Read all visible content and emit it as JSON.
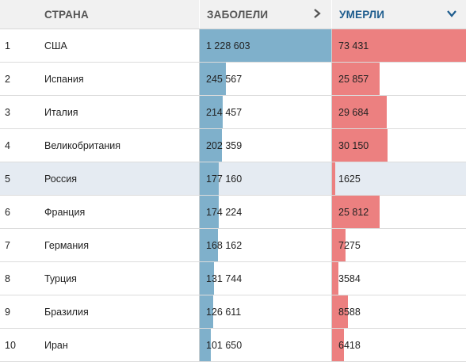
{
  "header": {
    "country": "СТРАНА",
    "cases": "ЗАБОЛЕЛИ",
    "deaths": "УМЕРЛИ",
    "cases_icon": "chevron-right-icon",
    "deaths_icon": "chevron-down-icon",
    "accent_color": "#1f5d8e"
  },
  "colors": {
    "cases_bar": "#7fb0cb",
    "deaths_bar": "#ec8080",
    "highlight_row": "#e5ebf2"
  },
  "rows": [
    {
      "rank": "1",
      "country": "США",
      "cases": "1 228 603",
      "deaths": "73 431",
      "cases_num": 1228603,
      "deaths_num": 73431
    },
    {
      "rank": "2",
      "country": "Испания",
      "cases": "245 567",
      "deaths": "25 857",
      "cases_num": 245567,
      "deaths_num": 25857
    },
    {
      "rank": "3",
      "country": "Италия",
      "cases": "214 457",
      "deaths": "29 684",
      "cases_num": 214457,
      "deaths_num": 29684
    },
    {
      "rank": "4",
      "country": "Великобритания",
      "cases": "202 359",
      "deaths": "30 150",
      "cases_num": 202359,
      "deaths_num": 30150
    },
    {
      "rank": "5",
      "country": "Россия",
      "cases": "177 160",
      "deaths": "1625",
      "cases_num": 177160,
      "deaths_num": 1625,
      "highlight": true
    },
    {
      "rank": "6",
      "country": "Франция",
      "cases": "174 224",
      "deaths": "25 812",
      "cases_num": 174224,
      "deaths_num": 25812
    },
    {
      "rank": "7",
      "country": "Германия",
      "cases": "168 162",
      "deaths": "7275",
      "cases_num": 168162,
      "deaths_num": 7275
    },
    {
      "rank": "8",
      "country": "Турция",
      "cases": "131 744",
      "deaths": "3584",
      "cases_num": 131744,
      "deaths_num": 3584
    },
    {
      "rank": "9",
      "country": "Бразилия",
      "cases": "126 611",
      "deaths": "8588",
      "cases_num": 126611,
      "deaths_num": 8588
    },
    {
      "rank": "10",
      "country": "Иран",
      "cases": "101 650",
      "deaths": "6418",
      "cases_num": 101650,
      "deaths_num": 6418
    }
  ]
}
